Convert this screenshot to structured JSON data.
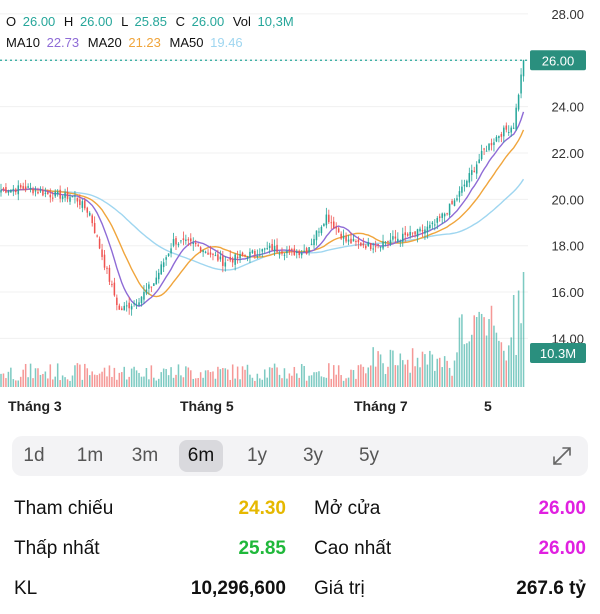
{
  "ohlc_header": {
    "o_label": "O",
    "o_value": "26.00",
    "h_label": "H",
    "h_value": "26.00",
    "l_label": "L",
    "l_value": "25.85",
    "c_label": "C",
    "c_value": "26.00",
    "vol_label": "Vol",
    "vol_value": "10,3M"
  },
  "ma_header": {
    "ma10_label": "MA10",
    "ma10_value": "22.73",
    "ma20_label": "MA20",
    "ma20_value": "21.23",
    "ma50_label": "MA50",
    "ma50_value": "19.46"
  },
  "colors": {
    "up": "#26a69a",
    "down": "#ef5350",
    "ma10": "#8e6bd6",
    "ma20": "#f0a53c",
    "ma50": "#9fd6f0",
    "yellow": "#e6b800",
    "green": "#1fb83a",
    "magenta": "#e020e0"
  },
  "chart_data": {
    "type": "candlestick",
    "y_range": [
      13.5,
      28.6
    ],
    "y_ticks": [
      "28.00",
      "26.00",
      "24.00",
      "22.00",
      "20.00",
      "18.00",
      "16.00",
      "14.00"
    ],
    "x_labels": [
      "Tháng 3",
      "Tháng 5",
      "Tháng 7",
      "5"
    ],
    "last_price_label": "26.00",
    "volume_label": "10.3M",
    "series_names": [
      "MA10",
      "MA20",
      "MA50"
    ]
  },
  "timeframes": [
    "1d",
    "1m",
    "3m",
    "6m",
    "1y",
    "3y",
    "5y"
  ],
  "selected_timeframe": "6m",
  "stats": {
    "ref_label": "Tham chiếu",
    "ref_value": "24.30",
    "open_label": "Mở cửa",
    "open_value": "26.00",
    "low_label": "Thấp nhất",
    "low_value": "25.85",
    "high_label": "Cao nhất",
    "high_value": "26.00",
    "vol_label": "KL",
    "vol_value": "10,296,600",
    "value_label": "Giá trị",
    "value_value": "267.6 tỷ"
  }
}
